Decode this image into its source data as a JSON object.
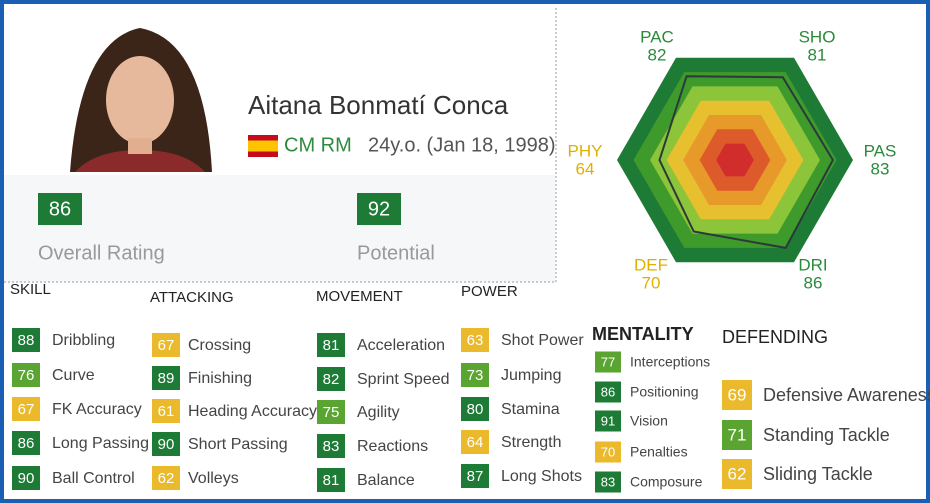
{
  "profile": {
    "name": "Aitana Bonmatí Conca",
    "positions": "CM RM",
    "age_birth": "24y.o. (Jan 18, 1998)"
  },
  "ratings": [
    {
      "value": 86,
      "label": "Overall Rating"
    },
    {
      "value": 92,
      "label": "Potential"
    }
  ],
  "radar": [
    {
      "label": "PAC",
      "value": 82
    },
    {
      "label": "SHO",
      "value": 81
    },
    {
      "label": "PAS",
      "value": 83
    },
    {
      "label": "DRI",
      "value": 86
    },
    {
      "label": "DEF",
      "value": 70
    },
    {
      "label": "PHY",
      "value": 64
    }
  ],
  "sections": [
    {
      "title": "SKILL",
      "items": [
        {
          "value": 88,
          "label": "Dribbling"
        },
        {
          "value": 76,
          "label": "Curve"
        },
        {
          "value": 67,
          "label": "FK Accuracy"
        },
        {
          "value": 86,
          "label": "Long Passing"
        },
        {
          "value": 90,
          "label": "Ball Control"
        }
      ]
    },
    {
      "title": "ATTACKING",
      "items": [
        {
          "value": 67,
          "label": "Crossing"
        },
        {
          "value": 89,
          "label": "Finishing"
        },
        {
          "value": 61,
          "label": "Heading Accuracy"
        },
        {
          "value": 90,
          "label": "Short Passing"
        },
        {
          "value": 62,
          "label": "Volleys"
        }
      ]
    },
    {
      "title": "MOVEMENT",
      "items": [
        {
          "value": 81,
          "label": "Acceleration"
        },
        {
          "value": 82,
          "label": "Sprint Speed"
        },
        {
          "value": 75,
          "label": "Agility"
        },
        {
          "value": 83,
          "label": "Reactions"
        },
        {
          "value": 81,
          "label": "Balance"
        }
      ]
    },
    {
      "title": "POWER",
      "items": [
        {
          "value": 63,
          "label": "Shot Power"
        },
        {
          "value": 73,
          "label": "Jumping"
        },
        {
          "value": 80,
          "label": "Stamina"
        },
        {
          "value": 64,
          "label": "Strength"
        },
        {
          "value": 87,
          "label": "Long Shots"
        }
      ]
    },
    {
      "title": "MENTALITY",
      "items": [
        {
          "value": 77,
          "label": "Interceptions"
        },
        {
          "value": 86,
          "label": "Positioning"
        },
        {
          "value": 91,
          "label": "Vision"
        },
        {
          "value": 70,
          "label": "Penalties"
        },
        {
          "value": 83,
          "label": "Composure"
        }
      ]
    },
    {
      "title": "DEFENDING",
      "items": [
        {
          "value": 69,
          "label": "Defensive Awareness"
        },
        {
          "value": 71,
          "label": "Standing Tackle"
        },
        {
          "value": 62,
          "label": "Sliding Tackle"
        }
      ]
    }
  ]
}
